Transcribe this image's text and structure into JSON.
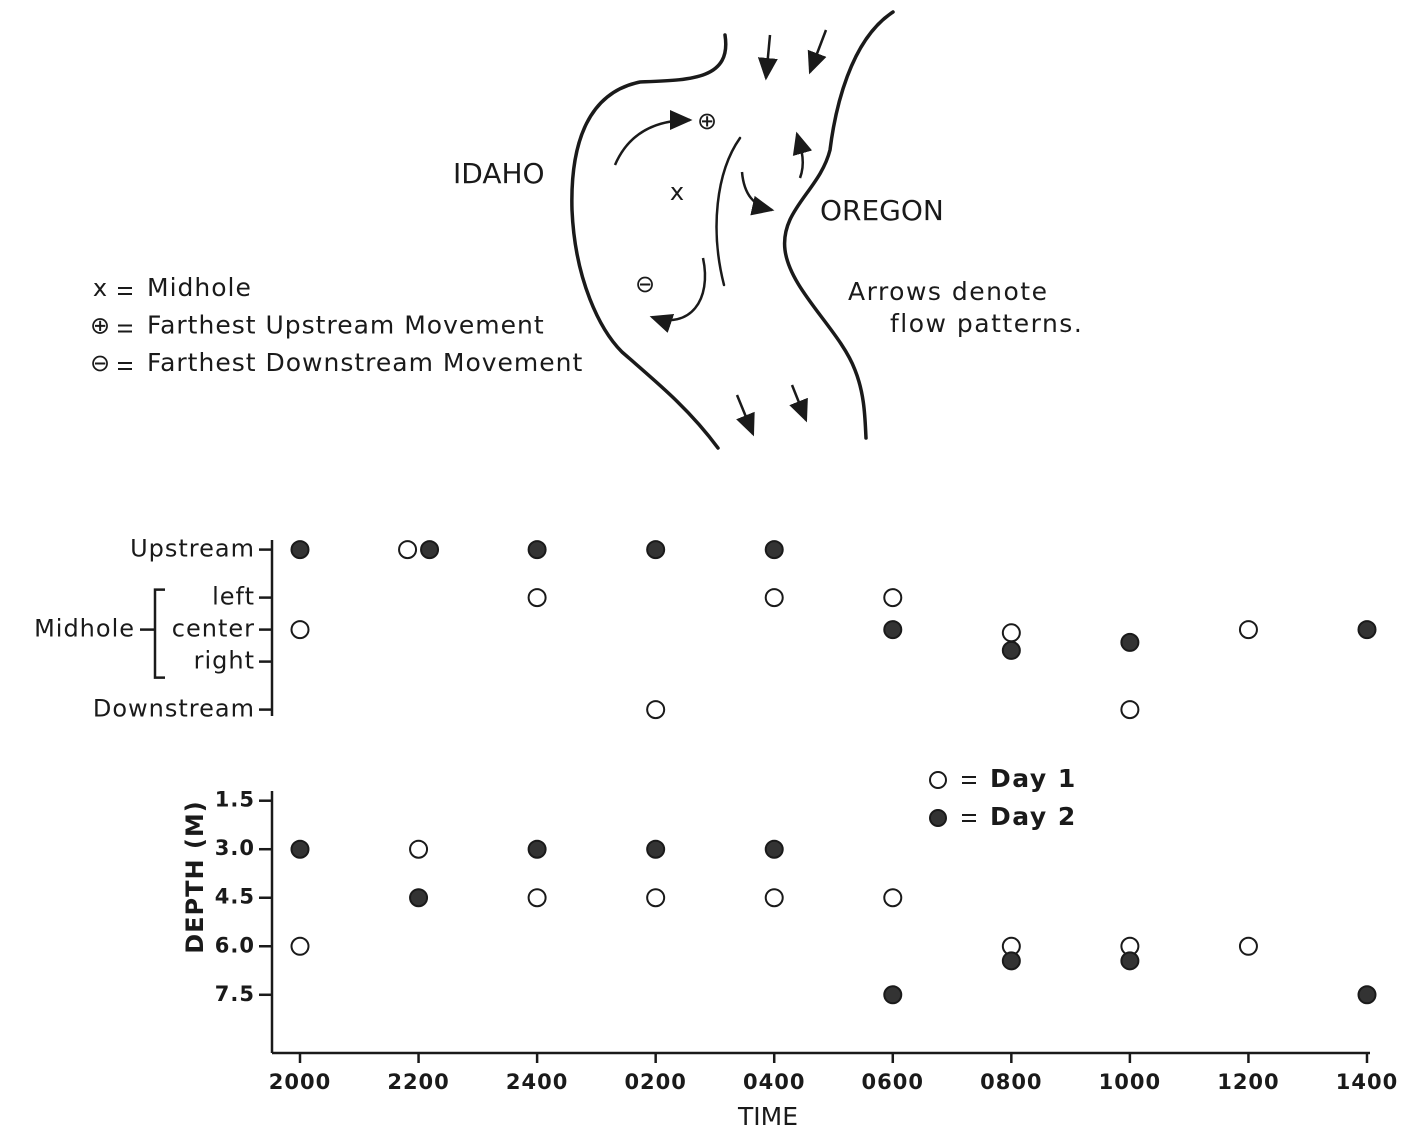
{
  "map": {
    "state_left": "IDAHO",
    "state_right": "OREGON",
    "note": [
      "Arrows denote",
      "flow patterns."
    ],
    "legend": [
      {
        "symbol": "x",
        "label": "Midhole"
      },
      {
        "symbol": "⊕",
        "label": "Farthest Upstream Movement"
      },
      {
        "symbol": "⊖",
        "label": "Farthest Downstream Movement"
      }
    ]
  },
  "chart_data": [
    {
      "type": "scatter",
      "group_label": "Midhole",
      "yticks": [
        {
          "value": 2.5,
          "label": "Upstream"
        },
        {
          "value": 1,
          "label": "left"
        },
        {
          "value": 0,
          "label": "center"
        },
        {
          "value": -1,
          "label": "right"
        },
        {
          "value": -2.5,
          "label": "Downstream"
        }
      ],
      "ylim": [
        -2.7,
        2.8
      ],
      "series": [
        {
          "name": "Day 1",
          "color": "#ffffff",
          "values": [
            0,
            2.5,
            1,
            -2.5,
            1,
            1,
            -0.1,
            -2.5,
            0,
            null
          ]
        },
        {
          "name": "Day 2",
          "color": "#333333",
          "values": [
            2.5,
            2.5,
            2.5,
            2.5,
            2.5,
            0,
            -0.65,
            -0.4,
            null,
            0
          ]
        }
      ]
    },
    {
      "type": "scatter",
      "y_label": "DEPTH (M)",
      "x_label": "TIME",
      "categories": [
        "2000",
        "2200",
        "2400",
        "0200",
        "0400",
        "0600",
        "0800",
        "1000",
        "1200",
        "1400"
      ],
      "yticks": [
        1.5,
        {
          "value": 3,
          "label": "3.0"
        },
        4.5,
        {
          "value": 6,
          "label": "6.0"
        },
        7.5
      ],
      "ylim": [
        1.2,
        9.3
      ],
      "y_inverted": true,
      "legend": "upper right",
      "series": [
        {
          "name": "Day 1",
          "color": "#ffffff",
          "values": [
            6,
            3,
            4.5,
            4.5,
            4.5,
            4.5,
            6,
            6,
            6,
            null
          ]
        },
        {
          "name": "Day 2",
          "color": "#333333",
          "values": [
            3,
            4.5,
            3,
            3,
            3,
            7.5,
            6.45,
            6.45,
            null,
            7.5
          ]
        }
      ]
    }
  ]
}
